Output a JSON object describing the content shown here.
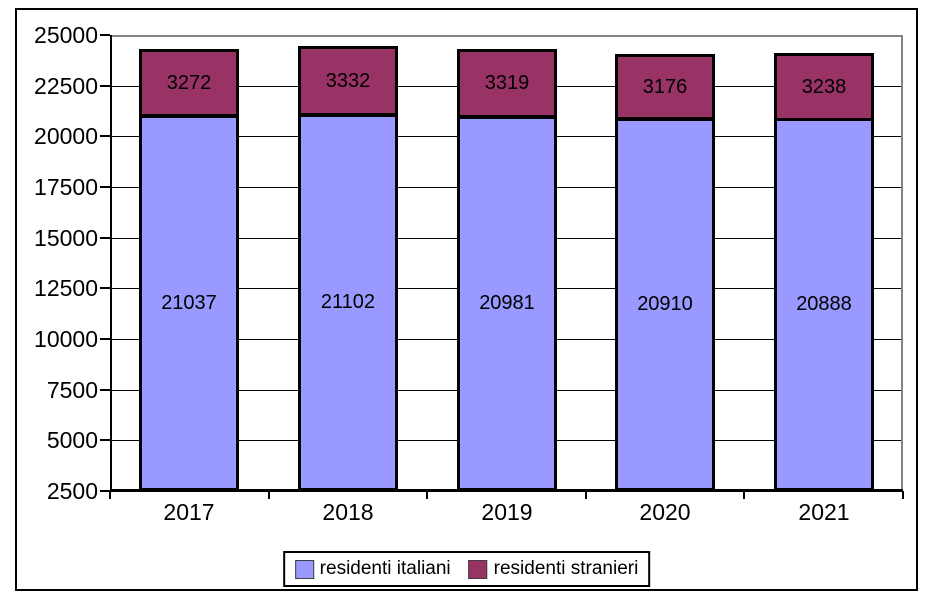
{
  "chart_data": {
    "type": "bar",
    "stacked": true,
    "title": "",
    "categories": [
      "2017",
      "2018",
      "2019",
      "2020",
      "2021"
    ],
    "series": [
      {
        "name": "residenti italiani",
        "color": "#9999FF",
        "values": [
          21037,
          21102,
          20981,
          20910,
          20888
        ]
      },
      {
        "name": "residenti stranieri",
        "color": "#993366",
        "values": [
          3272,
          3332,
          3319,
          3176,
          3238
        ]
      }
    ],
    "data_labels_visible": true,
    "y_axis": {
      "min": 2500,
      "max": 25000,
      "step": 2500,
      "ticks": [
        2500,
        5000,
        7500,
        10000,
        12500,
        15000,
        17500,
        20000,
        22500,
        25000
      ]
    },
    "grid": true,
    "legend_position": "bottom",
    "colors": {
      "axis_line": "#000000",
      "gridline": "#000000",
      "plot_border": "#848484",
      "frame_border": "#000000",
      "background": "#ffffff",
      "label_text": "#000000"
    }
  }
}
